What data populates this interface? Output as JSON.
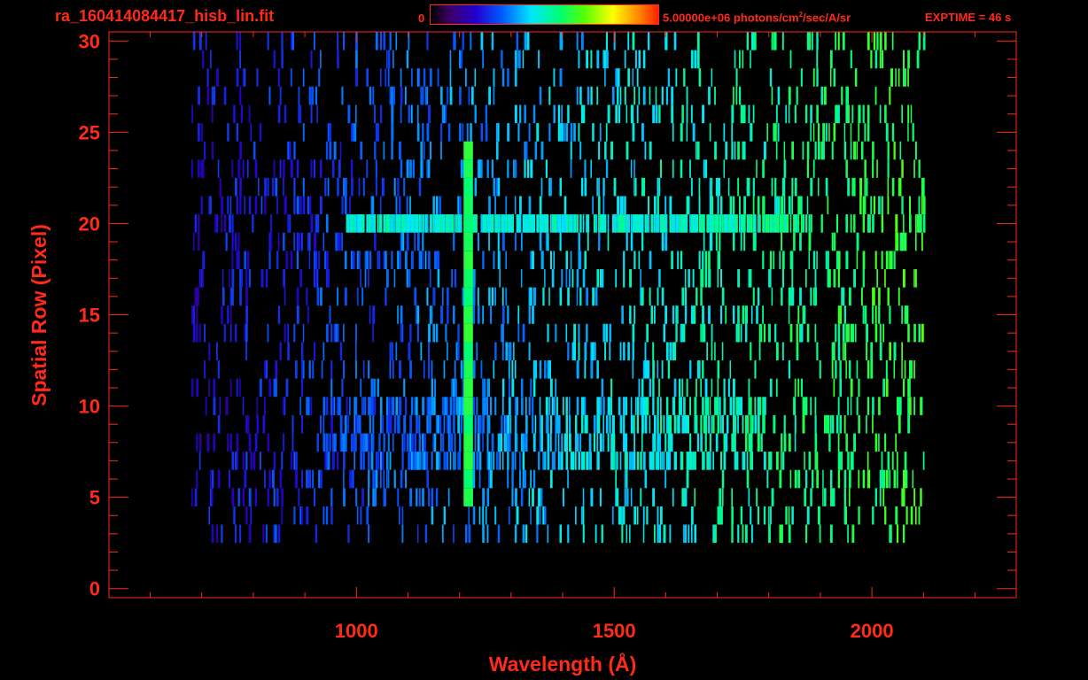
{
  "header": {
    "filename": "ra_160414084417_hisb_lin.fit",
    "colorbar_min": "0",
    "colorbar_max_prefix": "5.00000e+06 photons/cm",
    "colorbar_max_sup": "2",
    "colorbar_max_suffix": "/sec/A/sr",
    "exptime": "EXPTIME = 46 s"
  },
  "colors": {
    "axis": "#ff2a1a",
    "background": "#000000"
  },
  "chart_data": {
    "type": "heatmap",
    "title": "ra_160414084417_hisb_lin.fit",
    "xlabel": "Wavelength (Å)",
    "ylabel": "Spatial Row (Pixel)",
    "xlim": [
      520,
      2280
    ],
    "ylim": [
      -0.5,
      30.5
    ],
    "x_ticks": [
      1000,
      1500,
      2000
    ],
    "y_ticks": [
      0,
      5,
      10,
      15,
      20,
      25,
      30
    ],
    "colorbar": {
      "min": 0,
      "max": 5000000,
      "units": "photons/cm^2/sec/A/sr"
    },
    "data_extent_wavelength": [
      680,
      2100
    ],
    "features": [
      {
        "kind": "emission_line",
        "wavelength": 1216,
        "rows": [
          5,
          24
        ],
        "level": 0.6
      },
      {
        "kind": "bright_row",
        "row": 20,
        "wavelength_range": [
          980,
          1880
        ],
        "level": 0.48
      },
      {
        "kind": "enhanced_rows",
        "rows": [
          7,
          10
        ],
        "wavelength_range": [
          930,
          1800
        ],
        "level": 0.3
      }
    ]
  }
}
